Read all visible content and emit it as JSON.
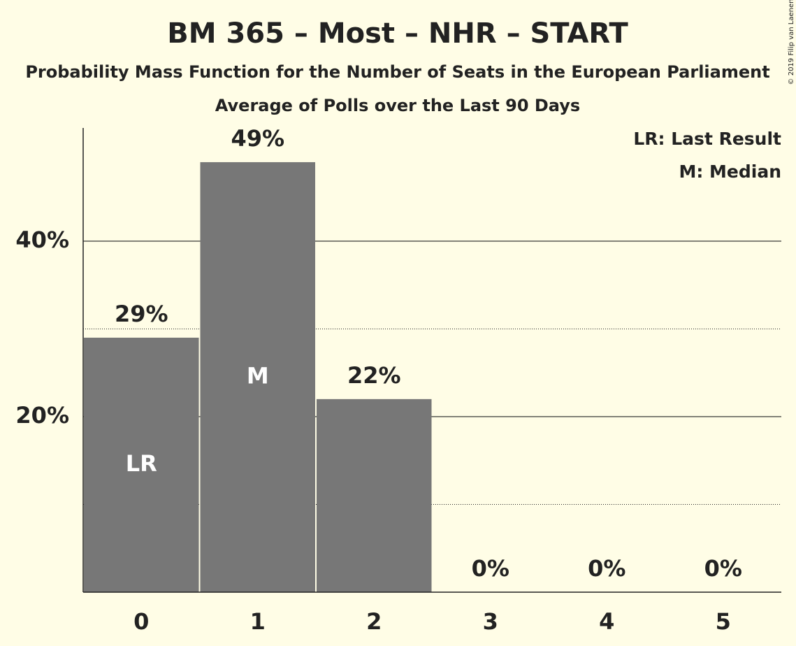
{
  "chart_data": {
    "type": "bar",
    "title": "BM 365 – Most – NHR – START",
    "subtitle": "Probability Mass Function for the Number of Seats in the European Parliament",
    "subtitle2": "Average of Polls over the Last 90 Days",
    "categories": [
      "0",
      "1",
      "2",
      "3",
      "4",
      "5"
    ],
    "values": [
      29,
      49,
      22,
      0,
      0,
      0
    ],
    "value_labels": [
      "29%",
      "49%",
      "22%",
      "0%",
      "0%",
      "0%"
    ],
    "bar_labels": [
      "LR",
      "M",
      null,
      null,
      null,
      null
    ],
    "color": "#777777",
    "ylim": [
      0,
      52.9
    ],
    "yticks": [
      {
        "value": 20,
        "label": "20%"
      },
      {
        "value": 40,
        "label": "40%"
      }
    ],
    "minor_grid": [
      10,
      30
    ],
    "grid": true,
    "legend": [
      "LR: Last Result",
      "M: Median"
    ],
    "legend_position": "top-right",
    "copyright": "© 2019 Filip van Laenen"
  }
}
